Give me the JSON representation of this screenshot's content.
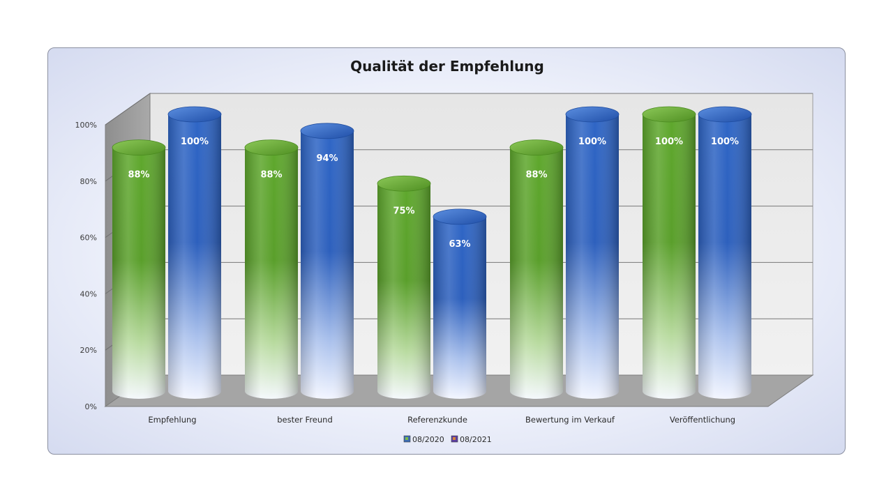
{
  "chart_data": {
    "type": "bar",
    "title": "Qualität der Empfehlung",
    "xlabel": "",
    "ylabel": "",
    "categories": [
      "Empfehlung",
      "bester Freund",
      "Referenzkunde",
      "Bewertung im Verkauf",
      "Veröffentlichung"
    ],
    "series": [
      {
        "name": "08/2020",
        "values": [
          88,
          88,
          75,
          88,
          100
        ],
        "data_labels": [
          "88%",
          "88%",
          "75%",
          "88%",
          "100%"
        ],
        "color": "#5ea12e"
      },
      {
        "name": "08/2021",
        "values": [
          100,
          94,
          63,
          100,
          100
        ],
        "data_labels": [
          "100%",
          "94%",
          "63%",
          "100%",
          "100%"
        ],
        "color": "#2f62c0"
      }
    ],
    "ylim": [
      0,
      100
    ],
    "yticks": [
      0,
      20,
      40,
      60,
      80,
      100
    ],
    "ytick_labels": [
      "0%",
      "20%",
      "40%",
      "60%",
      "80%",
      "100%"
    ],
    "grid": true,
    "legend": "bottom-center",
    "style": "3d-cylinder"
  }
}
